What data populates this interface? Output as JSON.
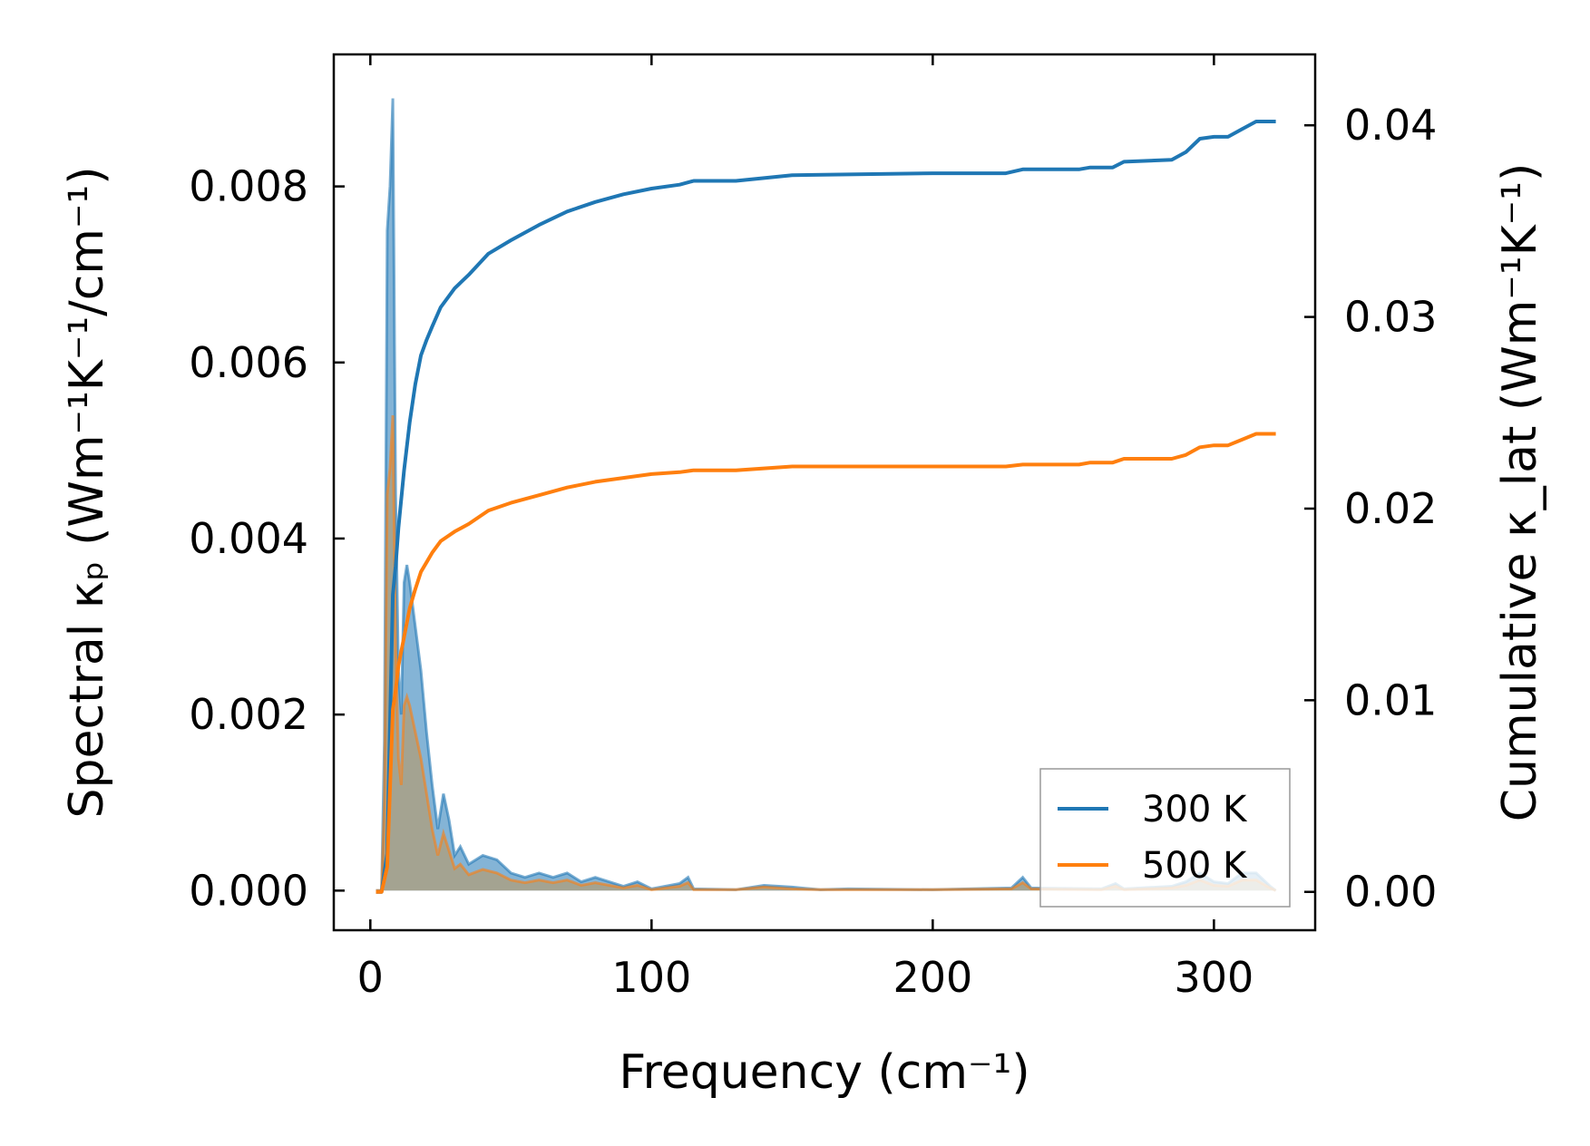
{
  "chart_data": {
    "type": "line",
    "xlabel": "Frequency (cm⁻¹)",
    "ylabel_left": "Spectral κₚ (Wm⁻¹K⁻¹/cm⁻¹)",
    "ylabel_right": "Cumulative κ_lat (Wm⁻¹K⁻¹)",
    "xlim": [
      -13,
      336
    ],
    "ylim_left": [
      -0.00045,
      0.0095
    ],
    "ylim_right": [
      -0.002,
      0.0437
    ],
    "xticks": [
      0,
      100,
      200,
      300
    ],
    "xtick_labels": [
      "0",
      "100",
      "200",
      "300"
    ],
    "yticks_left": [
      0.0,
      0.002,
      0.004,
      0.006,
      0.008
    ],
    "ytick_labels_left": [
      "0.000",
      "0.002",
      "0.004",
      "0.006",
      "0.008"
    ],
    "yticks_right": [
      0.0,
      0.01,
      0.02,
      0.03,
      0.04
    ],
    "ytick_labels_right": [
      "0.00",
      "0.01",
      "0.02",
      "0.03",
      "0.04"
    ],
    "legend_position": "lower-right",
    "grid": false,
    "series": [
      {
        "name": "300 K",
        "color": "#1f77b4",
        "fill_color": "#1f77b4",
        "cumulative": [
          [
            2,
            0
          ],
          [
            4,
            0
          ],
          [
            6,
            0.002
          ],
          [
            8,
            0.0155
          ],
          [
            9,
            0.017
          ],
          [
            10,
            0.019
          ],
          [
            12,
            0.022
          ],
          [
            14,
            0.0245
          ],
          [
            16,
            0.0265
          ],
          [
            18,
            0.028
          ],
          [
            20,
            0.0288
          ],
          [
            22,
            0.0295
          ],
          [
            25,
            0.0305
          ],
          [
            30,
            0.0315
          ],
          [
            35,
            0.0322
          ],
          [
            42,
            0.0333
          ],
          [
            50,
            0.034
          ],
          [
            60,
            0.0348
          ],
          [
            70,
            0.0355
          ],
          [
            80,
            0.036
          ],
          [
            90,
            0.0364
          ],
          [
            100,
            0.0367
          ],
          [
            110,
            0.0369
          ],
          [
            115,
            0.0371
          ],
          [
            130,
            0.0371
          ],
          [
            150,
            0.0374
          ],
          [
            200,
            0.0375
          ],
          [
            226,
            0.0375
          ],
          [
            232,
            0.0377
          ],
          [
            252,
            0.0377
          ],
          [
            256,
            0.0378
          ],
          [
            264,
            0.0378
          ],
          [
            268,
            0.0381
          ],
          [
            285,
            0.0382
          ],
          [
            290,
            0.0386
          ],
          [
            295,
            0.0393
          ],
          [
            300,
            0.0394
          ],
          [
            305,
            0.0394
          ],
          [
            310,
            0.0398
          ],
          [
            315,
            0.0402
          ],
          [
            322,
            0.0402
          ]
        ],
        "spectral": [
          [
            2,
            0
          ],
          [
            4,
            0
          ],
          [
            5,
            0.0017
          ],
          [
            6,
            0.0075
          ],
          [
            7,
            0.008
          ],
          [
            8,
            0.009
          ],
          [
            9,
            0.0045
          ],
          [
            10,
            0.0025
          ],
          [
            11,
            0.002
          ],
          [
            12,
            0.0035
          ],
          [
            13,
            0.0037
          ],
          [
            14,
            0.0035
          ],
          [
            16,
            0.003
          ],
          [
            18,
            0.0025
          ],
          [
            20,
            0.0018
          ],
          [
            22,
            0.0012
          ],
          [
            24,
            0.0007
          ],
          [
            26,
            0.0011
          ],
          [
            28,
            0.0008
          ],
          [
            30,
            0.0004
          ],
          [
            32,
            0.0005
          ],
          [
            35,
            0.0003
          ],
          [
            40,
            0.0004
          ],
          [
            45,
            0.00035
          ],
          [
            50,
            0.0002
          ],
          [
            55,
            0.00015
          ],
          [
            60,
            0.0002
          ],
          [
            65,
            0.00015
          ],
          [
            70,
            0.0002
          ],
          [
            75,
            0.0001
          ],
          [
            80,
            0.00015
          ],
          [
            90,
            5e-05
          ],
          [
            95,
            0.0001
          ],
          [
            100,
            2e-05
          ],
          [
            110,
            8e-05
          ],
          [
            113,
            0.00015
          ],
          [
            115,
            2e-05
          ],
          [
            130,
            1e-05
          ],
          [
            140,
            6e-05
          ],
          [
            150,
            4e-05
          ],
          [
            160,
            1e-05
          ],
          [
            170,
            2e-05
          ],
          [
            200,
            1e-05
          ],
          [
            228,
            3e-05
          ],
          [
            232,
            0.00015
          ],
          [
            235,
            3e-05
          ],
          [
            260,
            2e-05
          ],
          [
            265,
            8e-05
          ],
          [
            268,
            2e-05
          ],
          [
            285,
            5e-05
          ],
          [
            290,
            0.0001
          ],
          [
            295,
            0.0002
          ],
          [
            300,
            0.0001
          ],
          [
            305,
            8e-05
          ],
          [
            310,
            0.0002
          ],
          [
            315,
            0.0002
          ],
          [
            320,
            5e-05
          ],
          [
            322,
            0
          ]
        ]
      },
      {
        "name": "500 K",
        "color": "#ff7f0e",
        "fill_color": "#c0955a",
        "cumulative": [
          [
            2,
            0
          ],
          [
            4,
            0
          ],
          [
            6,
            0.0013
          ],
          [
            8,
            0.0095
          ],
          [
            9,
            0.0105
          ],
          [
            10,
            0.0118
          ],
          [
            12,
            0.0133
          ],
          [
            14,
            0.0148
          ],
          [
            16,
            0.0158
          ],
          [
            18,
            0.0167
          ],
          [
            20,
            0.0172
          ],
          [
            22,
            0.0177
          ],
          [
            25,
            0.0183
          ],
          [
            30,
            0.0188
          ],
          [
            35,
            0.0192
          ],
          [
            42,
            0.0199
          ],
          [
            50,
            0.0203
          ],
          [
            60,
            0.0207
          ],
          [
            70,
            0.0211
          ],
          [
            80,
            0.0214
          ],
          [
            90,
            0.0216
          ],
          [
            100,
            0.0218
          ],
          [
            110,
            0.0219
          ],
          [
            115,
            0.022
          ],
          [
            130,
            0.022
          ],
          [
            150,
            0.0222
          ],
          [
            200,
            0.0222
          ],
          [
            226,
            0.0222
          ],
          [
            232,
            0.0223
          ],
          [
            252,
            0.0223
          ],
          [
            256,
            0.0224
          ],
          [
            264,
            0.0224
          ],
          [
            268,
            0.0226
          ],
          [
            285,
            0.0226
          ],
          [
            290,
            0.0228
          ],
          [
            295,
            0.0232
          ],
          [
            300,
            0.0233
          ],
          [
            305,
            0.0233
          ],
          [
            310,
            0.0236
          ],
          [
            315,
            0.0239
          ],
          [
            322,
            0.0239
          ]
        ],
        "spectral": [
          [
            2,
            0
          ],
          [
            4,
            0
          ],
          [
            5,
            0.001
          ],
          [
            6,
            0.0045
          ],
          [
            7,
            0.0048
          ],
          [
            8,
            0.0054
          ],
          [
            9,
            0.0028
          ],
          [
            10,
            0.0015
          ],
          [
            11,
            0.0012
          ],
          [
            12,
            0.0021
          ],
          [
            13,
            0.0022
          ],
          [
            14,
            0.0021
          ],
          [
            16,
            0.0018
          ],
          [
            18,
            0.0015
          ],
          [
            20,
            0.0011
          ],
          [
            22,
            0.0007
          ],
          [
            24,
            0.0004
          ],
          [
            26,
            0.00065
          ],
          [
            28,
            0.00045
          ],
          [
            30,
            0.00025
          ],
          [
            32,
            0.0003
          ],
          [
            35,
            0.00018
          ],
          [
            40,
            0.00024
          ],
          [
            45,
            0.0002
          ],
          [
            50,
            0.00012
          ],
          [
            55,
            9e-05
          ],
          [
            60,
            0.00012
          ],
          [
            65,
            9e-05
          ],
          [
            70,
            0.00012
          ],
          [
            75,
            6e-05
          ],
          [
            80,
            9e-05
          ],
          [
            90,
            3e-05
          ],
          [
            95,
            6e-05
          ],
          [
            100,
            1e-05
          ],
          [
            110,
            5e-05
          ],
          [
            113,
            9e-05
          ],
          [
            115,
            1e-05
          ],
          [
            130,
            1e-05
          ],
          [
            140,
            4e-05
          ],
          [
            150,
            2e-05
          ],
          [
            160,
            1e-05
          ],
          [
            170,
            1e-05
          ],
          [
            200,
            1e-05
          ],
          [
            228,
            2e-05
          ],
          [
            232,
            9e-05
          ],
          [
            235,
            2e-05
          ],
          [
            260,
            1e-05
          ],
          [
            265,
            5e-05
          ],
          [
            268,
            1e-05
          ],
          [
            285,
            3e-05
          ],
          [
            290,
            6e-05
          ],
          [
            295,
            0.00012
          ],
          [
            300,
            6e-05
          ],
          [
            305,
            5e-05
          ],
          [
            310,
            0.00012
          ],
          [
            315,
            0.00012
          ],
          [
            320,
            3e-05
          ],
          [
            322,
            0
          ]
        ]
      }
    ]
  }
}
